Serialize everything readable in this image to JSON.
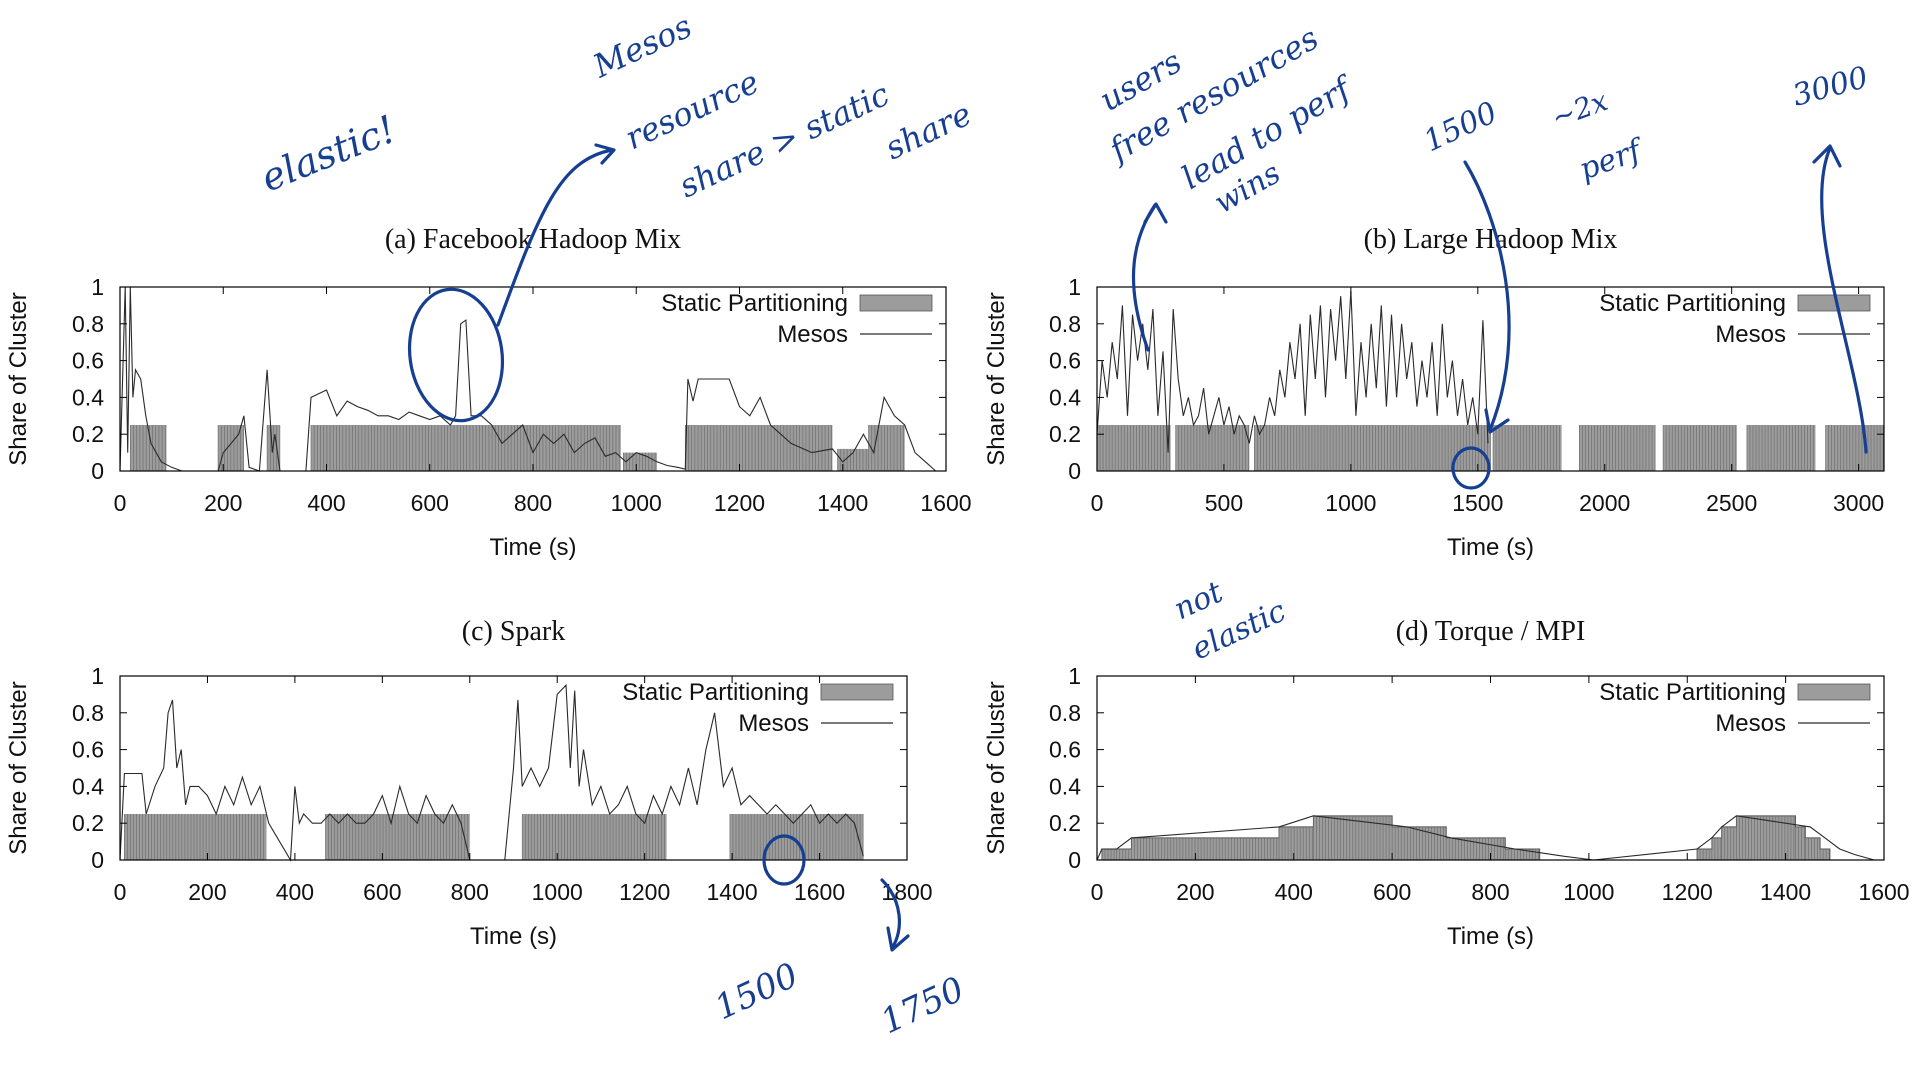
{
  "chart_data": [
    {
      "id": "a",
      "type": "area",
      "title": "(a) Facebook Hadoop Mix",
      "xlabel": "Time (s)",
      "ylabel": "Share of Cluster",
      "xlim": [
        0,
        1600
      ],
      "ylim": [
        0,
        1
      ],
      "xticks": [
        "0",
        "200",
        "400",
        "600",
        "800",
        "1000",
        "1200",
        "1400",
        "1600"
      ],
      "yticks": [
        "0",
        "0.2",
        "0.4",
        "0.6",
        "0.8",
        "1"
      ],
      "legend": {
        "position": "top-right",
        "items": [
          "Static Partitioning",
          "Mesos"
        ]
      },
      "static_bars": [
        [
          20,
          90,
          0.25
        ],
        [
          190,
          240,
          0.25
        ],
        [
          285,
          310,
          0.25
        ],
        [
          370,
          970,
          0.25
        ],
        [
          975,
          1040,
          0.1
        ],
        [
          1095,
          1380,
          0.25
        ],
        [
          1390,
          1450,
          0.12
        ],
        [
          1450,
          1520,
          0.25
        ]
      ],
      "series": [
        {
          "name": "Mesos",
          "x": [
            0,
            10,
            15,
            20,
            25,
            30,
            40,
            50,
            60,
            80,
            100,
            120,
            190,
            200,
            230,
            240,
            250,
            270,
            285,
            295,
            300,
            310,
            360,
            370,
            400,
            420,
            440,
            460,
            480,
            500,
            520,
            540,
            560,
            580,
            600,
            620,
            640,
            650,
            660,
            670,
            680,
            700,
            720,
            740,
            760,
            780,
            800,
            820,
            840,
            860,
            880,
            900,
            920,
            940,
            960,
            980,
            1000,
            1020,
            1040,
            1060,
            1080,
            1095,
            1100,
            1110,
            1120,
            1150,
            1180,
            1200,
            1220,
            1240,
            1260,
            1300,
            1340,
            1380,
            1400,
            1420,
            1440,
            1460,
            1480,
            1500,
            1520,
            1540,
            1560,
            1580
          ],
          "y": [
            0,
            1,
            0.1,
            1,
            0.4,
            0.55,
            0.5,
            0.3,
            0.15,
            0.05,
            0.02,
            0,
            0,
            0.1,
            0.2,
            0.3,
            0.02,
            0,
            0.55,
            0.1,
            0.2,
            0,
            0,
            0.4,
            0.44,
            0.3,
            0.38,
            0.35,
            0.33,
            0.3,
            0.3,
            0.28,
            0.32,
            0.3,
            0.28,
            0.3,
            0.25,
            0.3,
            0.8,
            0.82,
            0.3,
            0.3,
            0.25,
            0.15,
            0.2,
            0.25,
            0.1,
            0.2,
            0.15,
            0.2,
            0.1,
            0.15,
            0.18,
            0.08,
            0.1,
            0.05,
            0.1,
            0.08,
            0.05,
            0.03,
            0.02,
            0.01,
            0.5,
            0.38,
            0.5,
            0.5,
            0.5,
            0.35,
            0.3,
            0.4,
            0.25,
            0.15,
            0.1,
            0.12,
            0.05,
            0.1,
            0.2,
            0.1,
            0.4,
            0.3,
            0.25,
            0.1,
            0.05,
            0
          ]
        }
      ]
    },
    {
      "id": "b",
      "type": "area",
      "title": "(b) Large Hadoop Mix",
      "xlabel": "Time (s)",
      "ylabel": "Share of Cluster",
      "xlim": [
        0,
        3100
      ],
      "ylim": [
        0,
        1
      ],
      "xticks": [
        "0",
        "500",
        "1000",
        "1500",
        "2000",
        "2500",
        "3000"
      ],
      "yticks": [
        "0",
        "0.2",
        "0.4",
        "0.6",
        "0.8",
        "1"
      ],
      "legend": {
        "position": "top-right",
        "items": [
          "Static Partitioning",
          "Mesos"
        ]
      },
      "static_bars": [
        [
          0,
          290,
          0.25
        ],
        [
          310,
          600,
          0.25
        ],
        [
          620,
          1550,
          0.25
        ],
        [
          1560,
          1830,
          0.25
        ],
        [
          1900,
          2200,
          0.25
        ],
        [
          2230,
          2520,
          0.25
        ],
        [
          2560,
          2830,
          0.25
        ],
        [
          2870,
          3100,
          0.25
        ]
      ],
      "series": [
        {
          "name": "Mesos",
          "x": [
            0,
            20,
            40,
            60,
            80,
            100,
            120,
            140,
            160,
            180,
            200,
            220,
            240,
            260,
            280,
            300,
            320,
            340,
            360,
            380,
            400,
            420,
            440,
            460,
            480,
            500,
            520,
            540,
            560,
            580,
            600,
            620,
            640,
            660,
            680,
            700,
            720,
            740,
            760,
            780,
            800,
            820,
            840,
            860,
            880,
            900,
            920,
            940,
            960,
            980,
            1000,
            1020,
            1040,
            1060,
            1080,
            1100,
            1120,
            1140,
            1160,
            1180,
            1200,
            1220,
            1240,
            1260,
            1280,
            1300,
            1320,
            1340,
            1360,
            1380,
            1400,
            1420,
            1440,
            1460,
            1480,
            1500,
            1520,
            1540
          ],
          "y": [
            0.2,
            0.6,
            0.4,
            0.7,
            0.5,
            0.9,
            0.3,
            0.85,
            0.6,
            0.8,
            0.55,
            0.88,
            0.3,
            0.65,
            0.1,
            0.88,
            0.5,
            0.3,
            0.4,
            0.25,
            0.3,
            0.45,
            0.2,
            0.3,
            0.4,
            0.25,
            0.35,
            0.2,
            0.3,
            0.25,
            0.15,
            0.3,
            0.2,
            0.25,
            0.4,
            0.3,
            0.55,
            0.4,
            0.7,
            0.5,
            0.8,
            0.3,
            0.85,
            0.5,
            0.9,
            0.4,
            0.88,
            0.6,
            0.95,
            0.5,
            0.98,
            0.3,
            0.7,
            0.4,
            0.8,
            0.45,
            0.9,
            0.35,
            0.85,
            0.4,
            0.8,
            0.5,
            0.7,
            0.35,
            0.6,
            0.4,
            0.7,
            0.3,
            0.8,
            0.4,
            0.6,
            0.3,
            0.5,
            0.25,
            0.4,
            0.2,
            0.82,
            0.15
          ]
        }
      ]
    },
    {
      "id": "c",
      "type": "area",
      "title": "(c) Spark",
      "xlabel": "Time (s)",
      "ylabel": "Share of Cluster",
      "xlim": [
        0,
        1800
      ],
      "ylim": [
        0,
        1
      ],
      "xticks": [
        "0",
        "200",
        "400",
        "600",
        "800",
        "1000",
        "1200",
        "1400",
        "1600",
        "1800"
      ],
      "yticks": [
        "0",
        "0.2",
        "0.4",
        "0.6",
        "0.8",
        "1"
      ],
      "legend": {
        "position": "top-right",
        "items": [
          "Static Partitioning",
          "Mesos"
        ]
      },
      "static_bars": [
        [
          10,
          335,
          0.25
        ],
        [
          470,
          800,
          0.25
        ],
        [
          920,
          1250,
          0.25
        ],
        [
          1395,
          1700,
          0.25
        ]
      ],
      "series": [
        {
          "name": "Mesos",
          "x": [
            0,
            10,
            20,
            50,
            60,
            80,
            100,
            110,
            120,
            130,
            140,
            150,
            160,
            180,
            200,
            220,
            240,
            260,
            280,
            300,
            320,
            340,
            390,
            400,
            410,
            420,
            440,
            460,
            480,
            500,
            520,
            540,
            560,
            580,
            600,
            620,
            640,
            660,
            680,
            700,
            720,
            740,
            760,
            780,
            800,
            880,
            900,
            910,
            920,
            940,
            960,
            980,
            1000,
            1020,
            1030,
            1040,
            1050,
            1060,
            1080,
            1100,
            1120,
            1140,
            1160,
            1180,
            1200,
            1220,
            1240,
            1260,
            1280,
            1300,
            1320,
            1340,
            1350,
            1360,
            1380,
            1400,
            1420,
            1440,
            1460,
            1480,
            1500,
            1520,
            1540,
            1560,
            1580,
            1600,
            1620,
            1640,
            1660,
            1680,
            1700
          ],
          "y": [
            0,
            0.47,
            0.47,
            0.47,
            0.25,
            0.4,
            0.5,
            0.8,
            0.87,
            0.5,
            0.6,
            0.3,
            0.4,
            0.4,
            0.35,
            0.25,
            0.4,
            0.3,
            0.45,
            0.3,
            0.4,
            0.2,
            0,
            0.4,
            0.2,
            0.25,
            0.2,
            0.2,
            0.25,
            0.2,
            0.25,
            0.2,
            0.2,
            0.25,
            0.35,
            0.2,
            0.4,
            0.25,
            0.2,
            0.35,
            0.25,
            0.2,
            0.3,
            0.2,
            0,
            0,
            0.5,
            0.87,
            0.4,
            0.5,
            0.4,
            0.5,
            0.9,
            0.95,
            0.5,
            0.92,
            0.4,
            0.6,
            0.3,
            0.4,
            0.25,
            0.3,
            0.4,
            0.25,
            0.2,
            0.35,
            0.25,
            0.4,
            0.3,
            0.5,
            0.3,
            0.6,
            0.7,
            0.8,
            0.4,
            0.5,
            0.3,
            0.35,
            0.3,
            0.25,
            0.3,
            0.25,
            0.2,
            0.25,
            0.3,
            0.2,
            0.25,
            0.2,
            0.25,
            0.2,
            0.02
          ]
        }
      ]
    },
    {
      "id": "d",
      "type": "area",
      "title": "(d) Torque / MPI",
      "xlabel": "Time (s)",
      "ylabel": "Share of Cluster",
      "xlim": [
        0,
        1600
      ],
      "ylim": [
        0,
        1
      ],
      "xticks": [
        "0",
        "200",
        "400",
        "600",
        "800",
        "1000",
        "1200",
        "1400",
        "1600"
      ],
      "yticks": [
        "0",
        "0.2",
        "0.4",
        "0.6",
        "0.8",
        "1"
      ],
      "legend": {
        "position": "top-right",
        "items": [
          "Static Partitioning",
          "Mesos"
        ]
      },
      "static_steps": {
        "x": [
          10,
          40,
          70,
          370,
          440,
          600,
          710,
          830,
          900
        ],
        "y": [
          0.06,
          0.06,
          0.12,
          0.18,
          0.24,
          0.18,
          0.12,
          0.06,
          0
        ]
      },
      "static_steps_2": {
        "x": [
          1220,
          1250,
          1270,
          1300,
          1420,
          1440,
          1470,
          1490,
          1550
        ],
        "y": [
          0.06,
          0.12,
          0.18,
          0.24,
          0.18,
          0.12,
          0.06,
          0,
          0
        ]
      },
      "series": [
        {
          "name": "Mesos",
          "x": [
            0,
            10,
            40,
            70,
            370,
            440,
            630,
            720,
            850,
            950,
            1010,
            1220,
            1250,
            1270,
            1300,
            1450,
            1480,
            1510,
            1540,
            1580
          ],
          "y": [
            0,
            0.06,
            0.06,
            0.12,
            0.18,
            0.24,
            0.18,
            0.12,
            0.06,
            0.02,
            0,
            0.06,
            0.12,
            0.18,
            0.24,
            0.18,
            0.12,
            0.06,
            0.03,
            0
          ]
        }
      ]
    }
  ],
  "annotations": [
    {
      "id": "elastic",
      "text": "elastic!"
    },
    {
      "id": "mesos",
      "text": "Mesos"
    },
    {
      "id": "resource",
      "text": "resource"
    },
    {
      "id": "share-gt",
      "text": "share > static"
    },
    {
      "id": "share",
      "text": "share"
    },
    {
      "id": "users",
      "text": "users"
    },
    {
      "id": "free-resources",
      "text": "free resources"
    },
    {
      "id": "lead-to-perf",
      "text": "lead to perf"
    },
    {
      "id": "wins",
      "text": "wins"
    },
    {
      "id": "n1500-b",
      "text": "1500"
    },
    {
      "id": "approx-2x",
      "text": "~2x"
    },
    {
      "id": "perf",
      "text": "perf"
    },
    {
      "id": "n3000",
      "text": "3000"
    },
    {
      "id": "not",
      "text": "not"
    },
    {
      "id": "elastic-2",
      "text": "elastic"
    },
    {
      "id": "n1500-c",
      "text": "1500"
    },
    {
      "id": "n1750",
      "text": "1750"
    }
  ],
  "colors": {
    "static_fill": "#9c9c9c",
    "mesos_line": "#2a2a2a",
    "ink": "#173f91",
    "frame": "#000000"
  }
}
